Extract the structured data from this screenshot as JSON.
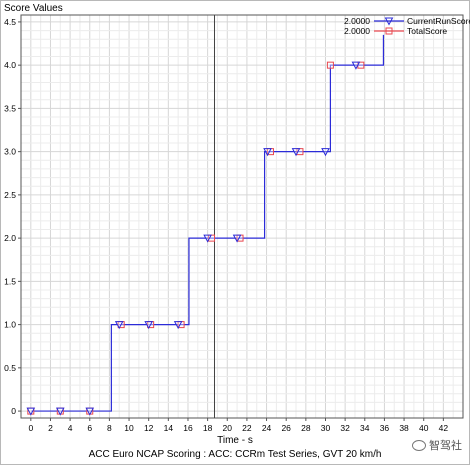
{
  "chart_data": {
    "type": "line",
    "title": "",
    "ylabel": "Score Values",
    "xlabel": "Time - s",
    "caption": "ACC Euro NCAP Scoring : ACC: CCRm Test Series, GVT 20 km/h",
    "xlim": [
      -1,
      44
    ],
    "ylim": [
      -0.08,
      4.58
    ],
    "x_ticks": [
      0,
      2,
      4,
      6,
      8,
      10,
      12,
      14,
      16,
      18,
      20,
      22,
      24,
      26,
      28,
      30,
      32,
      34,
      36,
      38,
      40,
      42
    ],
    "y_ticks": [
      0,
      0.5,
      1.0,
      1.5,
      2.0,
      2.5,
      3.0,
      3.5,
      4.0,
      4.5
    ],
    "y_tick_labels": [
      "0",
      "0.5",
      "1.0",
      "1.5",
      "2.0",
      "2.5",
      "3.0",
      "3.5",
      "4.0",
      "4.5"
    ],
    "grid": true,
    "cursor": {
      "x": 18.7
    },
    "series": [
      {
        "name": "CurrentRunScore",
        "legend_value": "2.0000",
        "color": "#2b2bd8",
        "marker": "triangle-down",
        "x": [
          0,
          8.2,
          8.2,
          16.1,
          16.1,
          23.8,
          23.8,
          30.5,
          30.5,
          35.9,
          35.9
        ],
        "y": [
          0,
          0,
          1,
          1,
          2,
          2,
          3,
          3,
          4,
          4,
          4.35
        ],
        "marker_x": [
          0,
          3.0,
          6.0,
          9.0,
          12.0,
          15.0,
          18.0,
          21.0,
          24.1,
          27.0,
          30.0,
          33.1
        ],
        "marker_y": [
          0,
          0,
          0,
          1,
          1,
          1,
          2,
          2,
          3,
          3,
          3,
          4
        ]
      },
      {
        "name": "TotalScore",
        "legend_value": "2.0000",
        "color": "#e8474f",
        "marker": "square",
        "marker_x": [
          0,
          3.0,
          6.0,
          9.2,
          12.2,
          15.3,
          18.4,
          21.3,
          24.4,
          27.4,
          30.5,
          33.6
        ],
        "marker_y": [
          0,
          0,
          0,
          1,
          1,
          1,
          2,
          2,
          3,
          3,
          4,
          4
        ]
      }
    ]
  },
  "watermark": {
    "text": "智驾社",
    "icon": "speech-bubble-icon"
  }
}
